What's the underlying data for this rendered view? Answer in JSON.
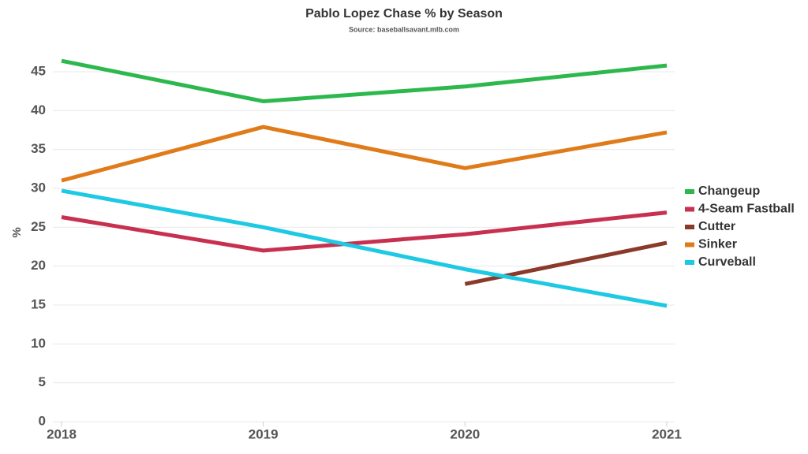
{
  "chart_data": {
    "type": "line",
    "title": "Pablo Lopez Chase % by Season",
    "subtitle": "Source: baseballsavant.mlb.com",
    "y_label": "%",
    "categories": [
      "2018",
      "2019",
      "2020",
      "2021"
    ],
    "series": [
      {
        "name": "Changeup",
        "color": "#2db84d",
        "values": [
          46.4,
          41.2,
          43.1,
          45.8
        ]
      },
      {
        "name": "4-Seam Fastball",
        "color": "#c8304f",
        "values": [
          26.3,
          22.0,
          24.1,
          26.9
        ]
      },
      {
        "name": "Cutter",
        "color": "#8b3a2a",
        "values": [
          null,
          null,
          17.7,
          23.0
        ]
      },
      {
        "name": "Sinker",
        "color": "#e07b1a",
        "values": [
          31.0,
          37.9,
          32.6,
          37.2
        ]
      },
      {
        "name": "Curveball",
        "color": "#1ec9e3",
        "values": [
          29.7,
          25.0,
          19.6,
          14.9
        ]
      }
    ],
    "ylim": [
      0,
      47.5
    ],
    "yticks": [
      0,
      5,
      10,
      15,
      20,
      25,
      30,
      35,
      40,
      45
    ],
    "grid": true,
    "legend": "right"
  }
}
